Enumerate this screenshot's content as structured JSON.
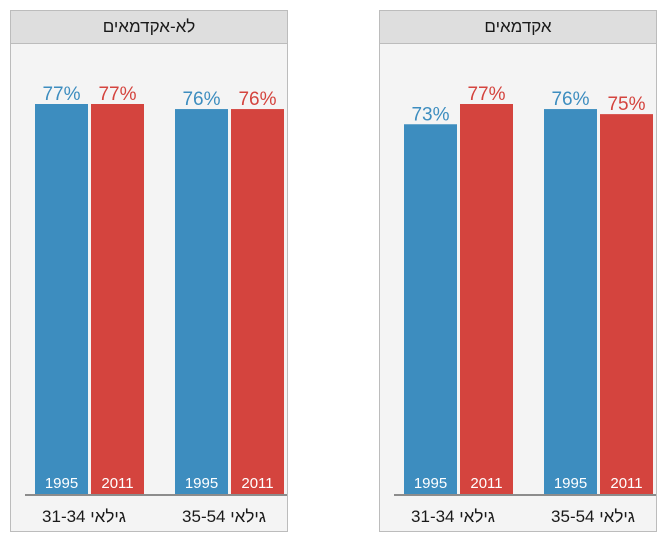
{
  "colors": {
    "series_1995": "#3d8dbf",
    "series_2011": "#d4443e"
  },
  "chart_data": [
    {
      "type": "bar",
      "title": "לא-אקדמאים",
      "categories": [
        "גילאי 31-34",
        "גילאי 35-54"
      ],
      "series": [
        {
          "name": "1995",
          "values": [
            77,
            76
          ],
          "labels": [
            "77%",
            "76%"
          ]
        },
        {
          "name": "2011",
          "values": [
            77,
            76
          ],
          "labels": [
            "77%",
            "76%"
          ]
        }
      ],
      "ylim": [
        0,
        77
      ]
    },
    {
      "type": "bar",
      "title": "אקדמאים",
      "categories": [
        "גילאי 31-34",
        "גילאי 35-54"
      ],
      "series": [
        {
          "name": "1995",
          "values": [
            73,
            76
          ],
          "labels": [
            "73%",
            "76%"
          ]
        },
        {
          "name": "2011",
          "values": [
            77,
            75
          ],
          "labels": [
            "77%",
            "75%"
          ]
        }
      ],
      "ylim": [
        0,
        77
      ]
    }
  ]
}
